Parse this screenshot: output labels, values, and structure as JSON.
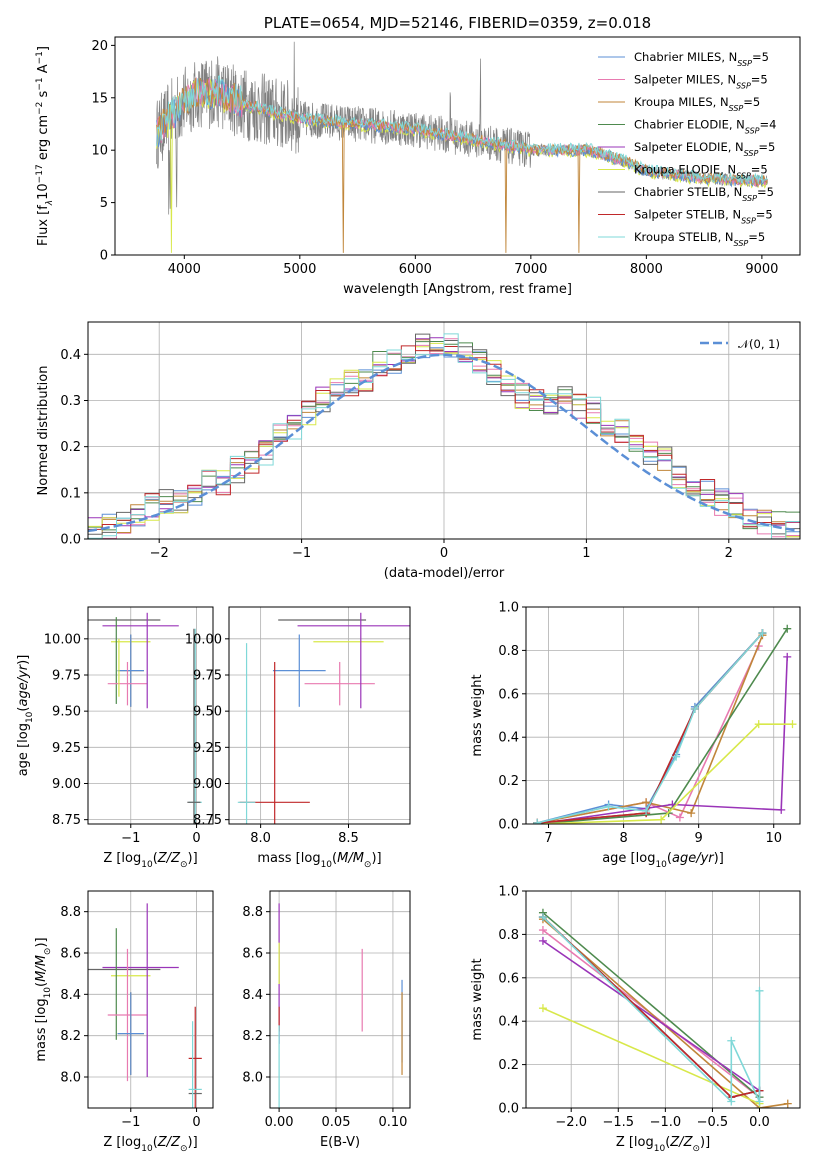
{
  "figure_title": "PLATE=0654, MJD=52146, FIBERID=0359, z=0.018",
  "colors": {
    "Chabrier MILES": "#5b8fd6",
    "Salpeter MILES": "#e87ab0",
    "Kroupa MILES": "#c0863a",
    "Chabrier ELODIE": "#4e8a4e",
    "Salpeter ELODIE": "#9a34b8",
    "Kroupa ELODIE": "#d8e84a",
    "Chabrier STELIB": "#666666",
    "Salpeter STELIB": "#c0282a",
    "Kroupa STELIB": "#7fd8d8",
    "gauss": "#5b8fd6"
  },
  "chart_data": [
    {
      "type": "line",
      "title": "PLATE=0654, MJD=52146, FIBERID=0359, z=0.018",
      "xlabel": "wavelength [Angstrom, rest frame]",
      "ylabel": "Flux [f_λ 10^-17 erg cm^-2 s^-1 A^-1]",
      "xlim": [
        3400,
        9330
      ],
      "ylim": [
        0,
        20.8
      ],
      "xticks": [
        "4000",
        "5000",
        "6000",
        "7000",
        "8000",
        "9000"
      ],
      "yticks": [
        "0",
        "5",
        "10",
        "15",
        "20"
      ],
      "legend_position": "top-right",
      "legend": [
        "Chabrier MILES, N_SSP=5",
        "Salpeter MILES, N_SSP=5",
        "Kroupa MILES, N_SSP=5",
        "Chabrier ELODIE, N_SSP=4",
        "Salpeter ELODIE, N_SSP=5",
        "Kroupa ELODIE, N_SSP=5",
        "Chabrier STELIB, N_SSP=5",
        "Salpeter STELIB, N_SSP=5",
        "Kroupa STELIB, N_SSP=5"
      ],
      "spectrum_anchor_points": {
        "x": [
          3760,
          3900,
          4000,
          4100,
          4300,
          4500,
          4800,
          5000,
          5500,
          6000,
          6500,
          7000,
          7500,
          7800,
          8000,
          8500,
          9050
        ],
        "y": [
          11.5,
          13.5,
          14.5,
          15.5,
          15.5,
          14.5,
          13.5,
          13,
          12.5,
          12,
          11,
          10,
          10,
          9,
          8,
          7.3,
          7
        ]
      }
    },
    {
      "type": "bar",
      "title": "",
      "xlabel": "(data-model)/error",
      "ylabel": "Normed distribution",
      "xlim": [
        -2.5,
        2.5
      ],
      "ylim": [
        0,
        0.47
      ],
      "xticks": [
        "−2",
        "−1",
        "0",
        "1",
        "2"
      ],
      "yticks": [
        "0.0",
        "0.1",
        "0.2",
        "0.3",
        "0.4"
      ],
      "legend_position": "top-right",
      "legend": [
        "𝒩(0, 1)"
      ],
      "bin_edges": [
        -2.5,
        -2.4,
        -2.3,
        -2.2,
        -2.1,
        -2.0,
        -1.9,
        -1.8,
        -1.7,
        -1.6,
        -1.5,
        -1.4,
        -1.3,
        -1.2,
        -1.1,
        -1.0,
        -0.9,
        -0.8,
        -0.7,
        -0.6,
        -0.5,
        -0.4,
        -0.3,
        -0.2,
        -0.1,
        0.0,
        0.1,
        0.2,
        0.3,
        0.4,
        0.5,
        0.6,
        0.7,
        0.8,
        0.9,
        1.0,
        1.1,
        1.2,
        1.3,
        1.4,
        1.5,
        1.6,
        1.7,
        1.8,
        1.9,
        2.0,
        2.1,
        2.2,
        2.3,
        2.4,
        2.5
      ],
      "histogram_values": [
        0.02,
        0.03,
        0.04,
        0.05,
        0.07,
        0.08,
        0.08,
        0.1,
        0.12,
        0.12,
        0.15,
        0.17,
        0.19,
        0.22,
        0.24,
        0.27,
        0.3,
        0.32,
        0.34,
        0.34,
        0.38,
        0.38,
        0.4,
        0.42,
        0.42,
        0.42,
        0.41,
        0.38,
        0.36,
        0.33,
        0.31,
        0.3,
        0.3,
        0.3,
        0.29,
        0.28,
        0.25,
        0.23,
        0.2,
        0.18,
        0.17,
        0.13,
        0.11,
        0.1,
        0.08,
        0.07,
        0.05,
        0.04,
        0.03,
        0.03
      ]
    },
    {
      "type": "scatter",
      "xlabel": "Z [log10(Z/Z⊙)]",
      "ylabel": "age  [log10(age/yr)]",
      "xlim": [
        -1.65,
        0.25
      ],
      "ylim": [
        8.72,
        10.22
      ],
      "xticks": [
        "−1",
        "0"
      ],
      "yticks": [
        "8.75",
        "9.00",
        "9.25",
        "9.50",
        "9.75",
        "10.00"
      ],
      "errorbars": [
        {
          "series": "Chabrier STELIB",
          "x": -1.1,
          "y": 10.13,
          "xerr": 0.55,
          "yerr": 0.0
        },
        {
          "series": "Salpeter ELODIE",
          "x": -0.85,
          "y": 10.09,
          "xerr": 0.58,
          "yerr": 0.0
        },
        {
          "series": "Kroupa ELODIE",
          "x": -1.0,
          "y": 9.98,
          "xerr": 0.3,
          "yerr": 0.0
        },
        {
          "series": "Chabrier ELODIE",
          "x": -1.22,
          "y": 9.85,
          "xerr": 0.0,
          "yerr": 0.3
        },
        {
          "series": "Kroupa MILES",
          "x": -1.0,
          "y": 9.78,
          "xerr": 0.2,
          "yerr": 0.25
        },
        {
          "series": "Chabrier MILES",
          "x": -1.0,
          "y": 9.78,
          "xerr": 0.2,
          "yerr": 0.25
        },
        {
          "series": "Salpeter MILES",
          "x": -1.05,
          "y": 9.69,
          "xerr": 0.3,
          "yerr": 0.15
        },
        {
          "series": "Salpeter ELODIE",
          "x": -0.75,
          "y": 9.85,
          "xerr": 0.0,
          "yerr": 0.33
        },
        {
          "series": "Kroupa ELODIE",
          "x": -1.18,
          "y": 9.8,
          "xerr": 0.0,
          "yerr": 0.2
        },
        {
          "series": "Kroupa STELIB",
          "x": -0.02,
          "y": 8.87,
          "xerr": 0.1,
          "yerr": 1.2
        },
        {
          "series": "Chabrier STELIB",
          "x": -0.04,
          "y": 8.87,
          "xerr": 0.1,
          "yerr": 1.2
        }
      ]
    },
    {
      "type": "scatter",
      "xlabel": "mass [log10(M/M⊙)]",
      "ylabel": "",
      "xlim": [
        7.82,
        8.85
      ],
      "ylim": [
        8.72,
        10.22
      ],
      "xticks": [
        "8.0",
        "8.5"
      ],
      "yticks": [
        "8.75",
        "9.00",
        "9.25",
        "9.50",
        "9.75",
        "10.00"
      ],
      "errorbars": [
        {
          "series": "Chabrier STELIB",
          "x": 8.35,
          "y": 10.13,
          "xerr": 0.25,
          "yerr": 0.0
        },
        {
          "series": "Salpeter ELODIE",
          "x": 8.53,
          "y": 10.09,
          "xerr": 0.32,
          "yerr": 0.0
        },
        {
          "series": "Kroupa ELODIE",
          "x": 8.5,
          "y": 9.98,
          "xerr": 0.2,
          "yerr": 0.0
        },
        {
          "series": "Chabrier MILES",
          "x": 8.22,
          "y": 9.78,
          "xerr": 0.15,
          "yerr": 0.25
        },
        {
          "series": "Salpeter MILES",
          "x": 8.45,
          "y": 9.69,
          "xerr": 0.2,
          "yerr": 0.15
        },
        {
          "series": "Salpeter STELIB",
          "x": 8.08,
          "y": 8.87,
          "xerr": 0.2,
          "yerr": 0.97
        },
        {
          "series": "Kroupa STELIB",
          "x": 7.92,
          "y": 8.87,
          "xerr": 0.05,
          "yerr": 1.1
        },
        {
          "series": "Salpeter ELODIE",
          "x": 8.57,
          "y": 9.85,
          "xerr": 0.0,
          "yerr": 0.33
        }
      ]
    },
    {
      "type": "line",
      "xlabel": "age  [log10(age/yr)]",
      "ylabel": "mass weight",
      "xlim": [
        6.7,
        10.35
      ],
      "ylim": [
        0,
        1.0
      ],
      "xticks": [
        "7",
        "8",
        "9",
        "10"
      ],
      "yticks": [
        "0.0",
        "0.2",
        "0.4",
        "0.6",
        "0.8",
        "1.0"
      ],
      "series": [
        {
          "name": "Chabrier MILES",
          "x": [
            6.85,
            7.8,
            8.3,
            8.7,
            8.95,
            9.85
          ],
          "y": [
            0.005,
            0.09,
            0.07,
            0.32,
            0.54,
            0.88
          ]
        },
        {
          "name": "Salpeter MILES",
          "x": [
            6.85,
            8.3,
            8.75,
            9.8
          ],
          "y": [
            0.005,
            0.1,
            0.03,
            0.82
          ]
        },
        {
          "name": "Kroupa MILES",
          "x": [
            6.85,
            8.3,
            8.9,
            9.85
          ],
          "y": [
            0.005,
            0.1,
            0.05,
            0.87
          ]
        },
        {
          "name": "Chabrier ELODIE",
          "x": [
            6.85,
            8.6,
            10.18
          ],
          "y": [
            0.0,
            0.05,
            0.9
          ]
        },
        {
          "name": "Salpeter ELODIE",
          "x": [
            6.85,
            8.65,
            10.1,
            10.18
          ],
          "y": [
            0.0,
            0.09,
            0.065,
            0.77
          ]
        },
        {
          "name": "Kroupa ELODIE",
          "x": [
            6.85,
            8.5,
            9.8,
            10.25
          ],
          "y": [
            0.0,
            0.02,
            0.46,
            0.46
          ]
        },
        {
          "name": "Chabrier STELIB",
          "x": [
            6.85,
            8.3,
            8.95,
            9.85
          ],
          "y": [
            0.005,
            0.05,
            0.53,
            0.88
          ]
        },
        {
          "name": "Salpeter STELIB",
          "x": [
            6.85,
            8.3,
            8.95,
            9.85
          ],
          "y": [
            0.005,
            0.05,
            0.53,
            0.88
          ]
        },
        {
          "name": "Kroupa STELIB",
          "x": [
            6.85,
            7.8,
            8.3,
            8.7,
            8.95,
            9.85
          ],
          "y": [
            0.005,
            0.08,
            0.06,
            0.31,
            0.53,
            0.88
          ]
        }
      ]
    },
    {
      "type": "scatter",
      "xlabel": "Z [log10(Z/Z⊙)]",
      "ylabel": "mass [log10(M/M⊙)]",
      "xlim": [
        -1.65,
        0.25
      ],
      "ylim": [
        7.85,
        8.9
      ],
      "xticks": [
        "−1",
        "0"
      ],
      "yticks": [
        "8.0",
        "8.2",
        "8.4",
        "8.6",
        "8.8"
      ],
      "errorbars": [
        {
          "series": "Chabrier STELIB",
          "x": -1.1,
          "y": 8.52,
          "xerr": 0.55,
          "yerr": 0.0
        },
        {
          "series": "Salpeter ELODIE",
          "x": -0.85,
          "y": 8.53,
          "xerr": 0.58,
          "yerr": 0.0
        },
        {
          "series": "Kroupa ELODIE",
          "x": -1.0,
          "y": 8.49,
          "xerr": 0.3,
          "yerr": 0.0
        },
        {
          "series": "Chabrier ELODIE",
          "x": -1.22,
          "y": 8.45,
          "xerr": 0.0,
          "yerr": 0.27
        },
        {
          "series": "Salpeter MILES",
          "x": -1.05,
          "y": 8.3,
          "xerr": 0.3,
          "yerr": 0.32
        },
        {
          "series": "Kroupa MILES",
          "x": -1.0,
          "y": 8.21,
          "xerr": 0.2,
          "yerr": 0.2
        },
        {
          "series": "Chabrier MILES",
          "x": -1.0,
          "y": 8.21,
          "xerr": 0.2,
          "yerr": 0.2
        },
        {
          "series": "Salpeter ELODIE",
          "x": -0.75,
          "y": 8.42,
          "xerr": 0.0,
          "yerr": 0.42
        },
        {
          "series": "Salpeter STELIB",
          "x": -0.02,
          "y": 8.09,
          "xerr": 0.1,
          "yerr": 0.25
        },
        {
          "series": "Kroupa STELIB",
          "x": -0.02,
          "y": 7.94,
          "xerr": 0.1,
          "yerr": 0.0
        },
        {
          "series": "Chabrier STELIB",
          "x": -0.02,
          "y": 7.92,
          "xerr": 0.1,
          "yerr": 0.0
        },
        {
          "series": "Kroupa STELIB",
          "x": -0.06,
          "y": 8.05,
          "xerr": 0.0,
          "yerr": 0.22
        }
      ]
    },
    {
      "type": "scatter",
      "xlabel": "E(B-V)",
      "ylabel": "",
      "xlim": [
        -0.008,
        0.115
      ],
      "ylim": [
        7.85,
        8.9
      ],
      "xticks": [
        "0.00",
        "0.05",
        "0.10"
      ],
      "yticks": [
        "8.0",
        "8.2",
        "8.4",
        "8.6",
        "8.8"
      ],
      "errorbars": [
        {
          "series": "Salpeter ELODIE",
          "x": 0.0,
          "y": 8.5,
          "xerr": 0.0,
          "yerr": 0.34
        },
        {
          "series": "Kroupa ELODIE",
          "x": 0.0,
          "y": 8.55,
          "xerr": 0.0,
          "yerr": 0.1
        },
        {
          "series": "Salpeter STELIB",
          "x": 0.0,
          "y": 8.28,
          "xerr": 0.0,
          "yerr": 0.06
        },
        {
          "series": "Kroupa STELIB",
          "x": 0.0,
          "y": 8.05,
          "xerr": 0.0,
          "yerr": 0.2
        },
        {
          "series": "Salpeter MILES",
          "x": 0.073,
          "y": 8.42,
          "xerr": 0.0,
          "yerr": 0.2
        },
        {
          "series": "Chabrier MILES",
          "x": 0.108,
          "y": 8.27,
          "xerr": 0.0,
          "yerr": 0.2
        },
        {
          "series": "Kroupa MILES",
          "x": 0.108,
          "y": 8.21,
          "xerr": 0.0,
          "yerr": 0.2
        }
      ]
    },
    {
      "type": "line",
      "xlabel": "Z [log10(Z/Z⊙)]",
      "ylabel": "mass weight",
      "xlim": [
        -2.48,
        0.43
      ],
      "ylim": [
        0,
        1.0
      ],
      "xticks": [
        "−2.0",
        "−1.5",
        "−1.0",
        "−0.5",
        "0.0"
      ],
      "yticks": [
        "0.0",
        "0.2",
        "0.4",
        "0.6",
        "0.8",
        "1.0"
      ],
      "series": [
        {
          "name": "Chabrier MILES",
          "x": [
            -2.3,
            -0.3,
            0.0
          ],
          "y": [
            0.88,
            0.05,
            0.08
          ]
        },
        {
          "name": "Salpeter MILES",
          "x": [
            -2.3,
            0.0
          ],
          "y": [
            0.82,
            0.05
          ]
        },
        {
          "name": "Kroupa MILES",
          "x": [
            -2.3,
            0.0,
            0.3
          ],
          "y": [
            0.87,
            0.0,
            0.02
          ]
        },
        {
          "name": "Chabrier ELODIE",
          "x": [
            -2.3,
            0.0
          ],
          "y": [
            0.9,
            0.05
          ]
        },
        {
          "name": "Salpeter ELODIE",
          "x": [
            -2.3,
            0.0
          ],
          "y": [
            0.77,
            0.08
          ]
        },
        {
          "name": "Kroupa ELODIE",
          "x": [
            -2.3,
            0.0
          ],
          "y": [
            0.46,
            0.02
          ]
        },
        {
          "name": "Chabrier STELIB",
          "x": [
            -2.3,
            -0.3,
            0.0
          ],
          "y": [
            0.88,
            0.05,
            0.08
          ]
        },
        {
          "name": "Salpeter STELIB",
          "x": [
            -2.3,
            -0.3,
            0.0
          ],
          "y": [
            0.88,
            0.05,
            0.08
          ]
        },
        {
          "name": "Kroupa STELIB",
          "x": [
            -2.3,
            -0.3,
            -0.3,
            0.0,
            0.0
          ],
          "y": [
            0.88,
            0.03,
            0.31,
            0.03,
            0.54
          ]
        }
      ]
    }
  ]
}
